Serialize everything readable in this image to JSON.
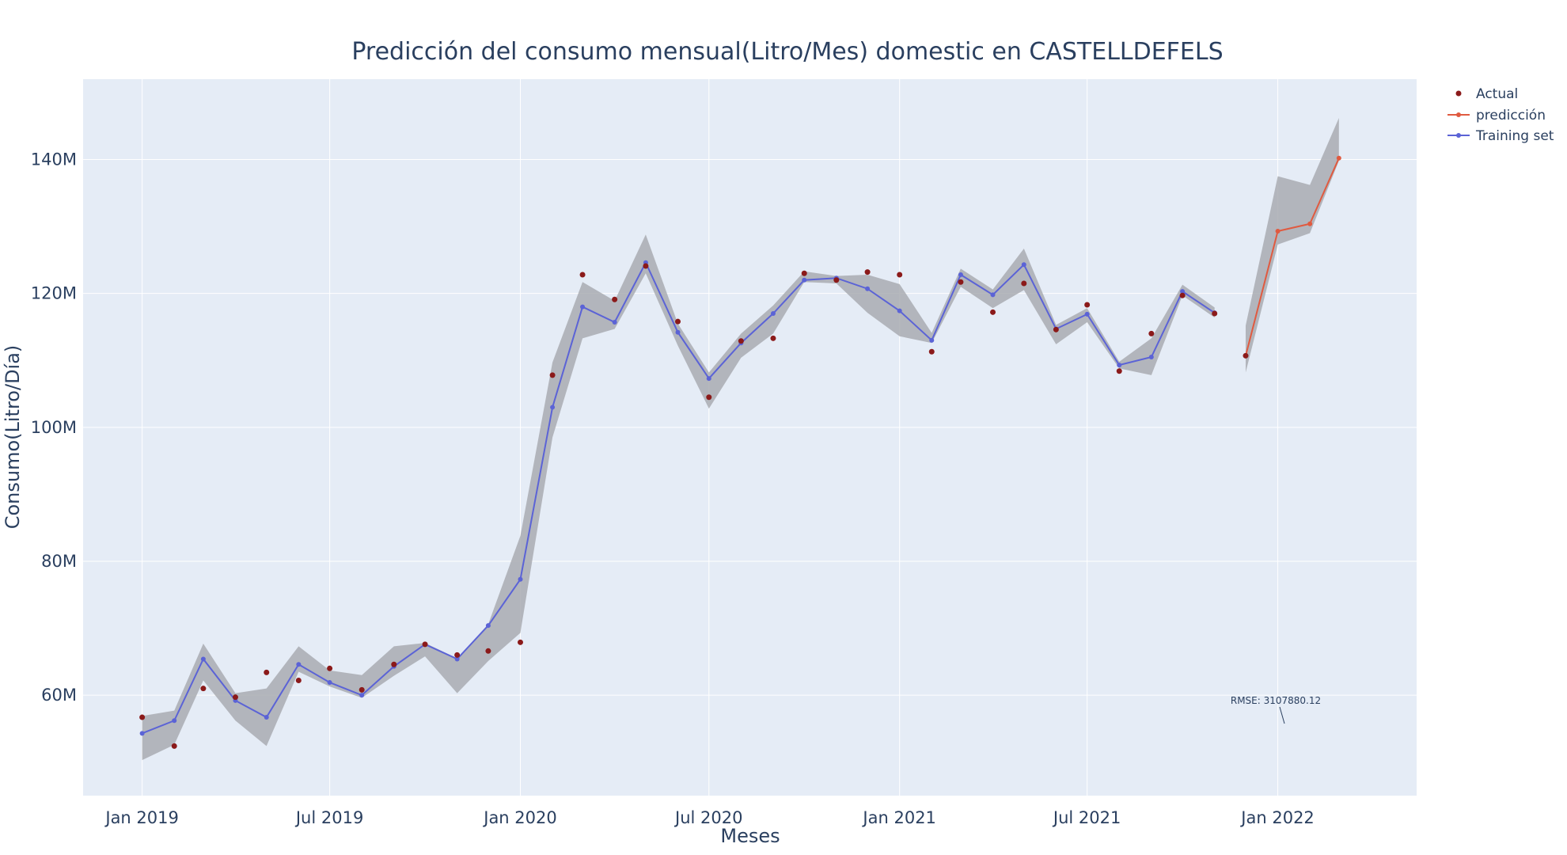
{
  "chart_data": {
    "type": "line",
    "title": "Predicción del consumo mensual(Litro/Mes) domestic en CASTELLDEFELS",
    "xlabel": "Meses",
    "ylabel": "Consumo(Litro/Día)",
    "x_ticks": [
      "Jan 2019",
      "Jul 2019",
      "Jan 2020",
      "Jul 2020",
      "Jan 2021",
      "Jul 2021",
      "Jan 2022"
    ],
    "y_ticks": [
      "60M",
      "80M",
      "100M",
      "120M",
      "140M"
    ],
    "y_tick_values": [
      60000000,
      80000000,
      100000000,
      120000000,
      140000000
    ],
    "xlim": [
      "2018-11-05",
      "2022-05-15"
    ],
    "ylim": [
      45000000,
      152000000
    ],
    "grid": true,
    "legend_position": "top-right",
    "plot_bgcolor": "#e5ecf6",
    "band_color": "#a9acb1",
    "annotation": {
      "text": "RMSE: 3107880.12"
    },
    "series": [
      {
        "name": "Actual",
        "mode": "markers",
        "color": "#8b1a1a",
        "x": [
          "2019-01-01",
          "2019-02-01",
          "2019-03-01",
          "2019-04-01",
          "2019-05-01",
          "2019-06-01",
          "2019-07-01",
          "2019-08-01",
          "2019-09-01",
          "2019-10-01",
          "2019-11-01",
          "2019-12-01",
          "2020-01-01",
          "2020-02-01",
          "2020-03-01",
          "2020-04-01",
          "2020-05-01",
          "2020-06-01",
          "2020-07-01",
          "2020-08-01",
          "2020-09-01",
          "2020-10-01",
          "2020-11-01",
          "2020-12-01",
          "2021-01-01",
          "2021-02-01",
          "2021-03-01",
          "2021-04-01",
          "2021-05-01",
          "2021-06-01",
          "2021-07-01",
          "2021-08-01",
          "2021-09-01",
          "2021-10-01",
          "2021-11-01",
          "2021-12-01"
        ],
        "y": [
          56700000,
          52400000,
          61000000,
          59700000,
          63400000,
          62200000,
          64000000,
          60800000,
          64600000,
          67600000,
          66000000,
          66600000,
          67900000,
          107800000,
          122800000,
          119100000,
          124100000,
          115800000,
          104500000,
          112900000,
          113300000,
          123000000,
          122000000,
          123200000,
          122800000,
          111300000,
          121700000,
          117200000,
          121500000,
          114600000,
          118300000,
          108400000,
          114000000,
          119700000,
          117000000,
          110700000
        ]
      },
      {
        "name": "predicción",
        "mode": "lines+markers",
        "color": "#e05a40",
        "x": [
          "2021-12-01",
          "2022-01-01",
          "2022-02-01",
          "2022-03-01"
        ],
        "y": [
          110700000,
          129300000,
          130400000,
          140200000
        ],
        "band_lower": [
          108200000,
          127300000,
          129000000,
          139800000
        ],
        "band_upper": [
          115200000,
          137500000,
          136200000,
          146200000
        ]
      },
      {
        "name": "Training set",
        "mode": "lines+markers",
        "color": "#5b63d6",
        "x": [
          "2019-01-01",
          "2019-02-01",
          "2019-03-01",
          "2019-04-01",
          "2019-05-01",
          "2019-06-01",
          "2019-07-01",
          "2019-08-01",
          "2019-09-01",
          "2019-10-01",
          "2019-11-01",
          "2019-12-01",
          "2020-01-01",
          "2020-02-01",
          "2020-03-01",
          "2020-04-01",
          "2020-05-01",
          "2020-06-01",
          "2020-07-01",
          "2020-08-01",
          "2020-09-01",
          "2020-10-01",
          "2020-11-01",
          "2020-12-01",
          "2021-01-01",
          "2021-02-01",
          "2021-03-01",
          "2021-04-01",
          "2021-05-01",
          "2021-06-01",
          "2021-07-01",
          "2021-08-01",
          "2021-09-01",
          "2021-10-01",
          "2021-11-01"
        ],
        "y": [
          54300000,
          56200000,
          65400000,
          59200000,
          56700000,
          64600000,
          61900000,
          60000000,
          64300000,
          67600000,
          65400000,
          70400000,
          77300000,
          103000000,
          118000000,
          115700000,
          124600000,
          114200000,
          107300000,
          112600000,
          117000000,
          122000000,
          122300000,
          120700000,
          117400000,
          113000000,
          122800000,
          119800000,
          124300000,
          114700000,
          116900000,
          109300000,
          110500000,
          120300000,
          117100000
        ],
        "band_lower": [
          50300000,
          52600000,
          62200000,
          56200000,
          52400000,
          63500000,
          61300000,
          59600000,
          62900000,
          65800000,
          60300000,
          65100000,
          69300000,
          98500000,
          113300000,
          114700000,
          123000000,
          112200000,
          102800000,
          110400000,
          114000000,
          121700000,
          121500000,
          117100000,
          113600000,
          112600000,
          121000000,
          117800000,
          120500000,
          112400000,
          115700000,
          108800000,
          107800000,
          119700000,
          116400000
        ],
        "band_upper": [
          56900000,
          57700000,
          67700000,
          60300000,
          61000000,
          67300000,
          63700000,
          63000000,
          67300000,
          67800000,
          65500000,
          70600000,
          83800000,
          109700000,
          121700000,
          118900000,
          128800000,
          115500000,
          108200000,
          114000000,
          118200000,
          123300000,
          122600000,
          122800000,
          121400000,
          114100000,
          123700000,
          120600000,
          126700000,
          115300000,
          117800000,
          109800000,
          113300000,
          121300000,
          117900000
        ]
      }
    ]
  }
}
